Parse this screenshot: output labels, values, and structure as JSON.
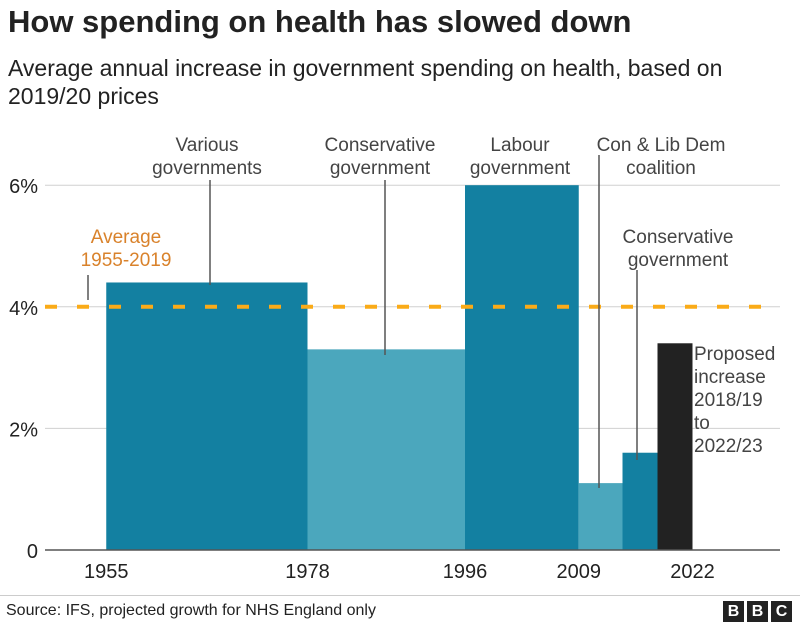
{
  "title": "How spending on health has slowed down",
  "subtitle": "Average annual increase in government spending on health, based on 2019/20 prices",
  "chart_data": {
    "type": "bar",
    "ylim": [
      0,
      6.2
    ],
    "xlim": [
      1948,
      2032
    ],
    "yticks": [
      {
        "value": 0,
        "label": "0"
      },
      {
        "value": 2,
        "label": "2%"
      },
      {
        "value": 4,
        "label": "4%"
      },
      {
        "value": 6,
        "label": "6%"
      }
    ],
    "xticks": [
      {
        "value": 1955,
        "label": "1955"
      },
      {
        "value": 1978,
        "label": "1978"
      },
      {
        "value": 1996,
        "label": "1996"
      },
      {
        "value": 2009,
        "label": "2009"
      },
      {
        "value": 2022,
        "label": "2022"
      }
    ],
    "grid": true,
    "bars": [
      {
        "start": 1955,
        "end": 1978,
        "value": 4.4,
        "color": "#1380a1"
      },
      {
        "start": 1978,
        "end": 1996,
        "value": 3.3,
        "color": "#4ba7bd"
      },
      {
        "start": 1996,
        "end": 2009,
        "value": 6.0,
        "color": "#1380a1"
      },
      {
        "start": 2009,
        "end": 2014,
        "value": 1.1,
        "color": "#4ba7bd"
      },
      {
        "start": 2014,
        "end": 2018,
        "value": 1.6,
        "color": "#1380a1"
      },
      {
        "start": 2018,
        "end": 2022,
        "value": 3.4,
        "color": "#222222"
      }
    ],
    "average": {
      "value": 4.0,
      "color": "#faab18",
      "label_color": "#d9822b",
      "label": [
        "Average",
        "1955-2019"
      ]
    },
    "annotations": [
      {
        "lines": [
          "Various",
          "governments"
        ]
      },
      {
        "lines": [
          "Conservative",
          "government"
        ]
      },
      {
        "lines": [
          "Labour",
          "government"
        ]
      },
      {
        "lines": [
          "Con & Lib Dem",
          "coalition"
        ]
      },
      {
        "lines": [
          "Conservative",
          "government"
        ]
      },
      {
        "lines": [
          "Proposed",
          "increase",
          "2018/19",
          "to",
          "2022/23"
        ]
      }
    ]
  },
  "footer": {
    "source": "Source: IFS, projected growth for NHS England only",
    "logo": [
      "B",
      "B",
      "C"
    ]
  }
}
